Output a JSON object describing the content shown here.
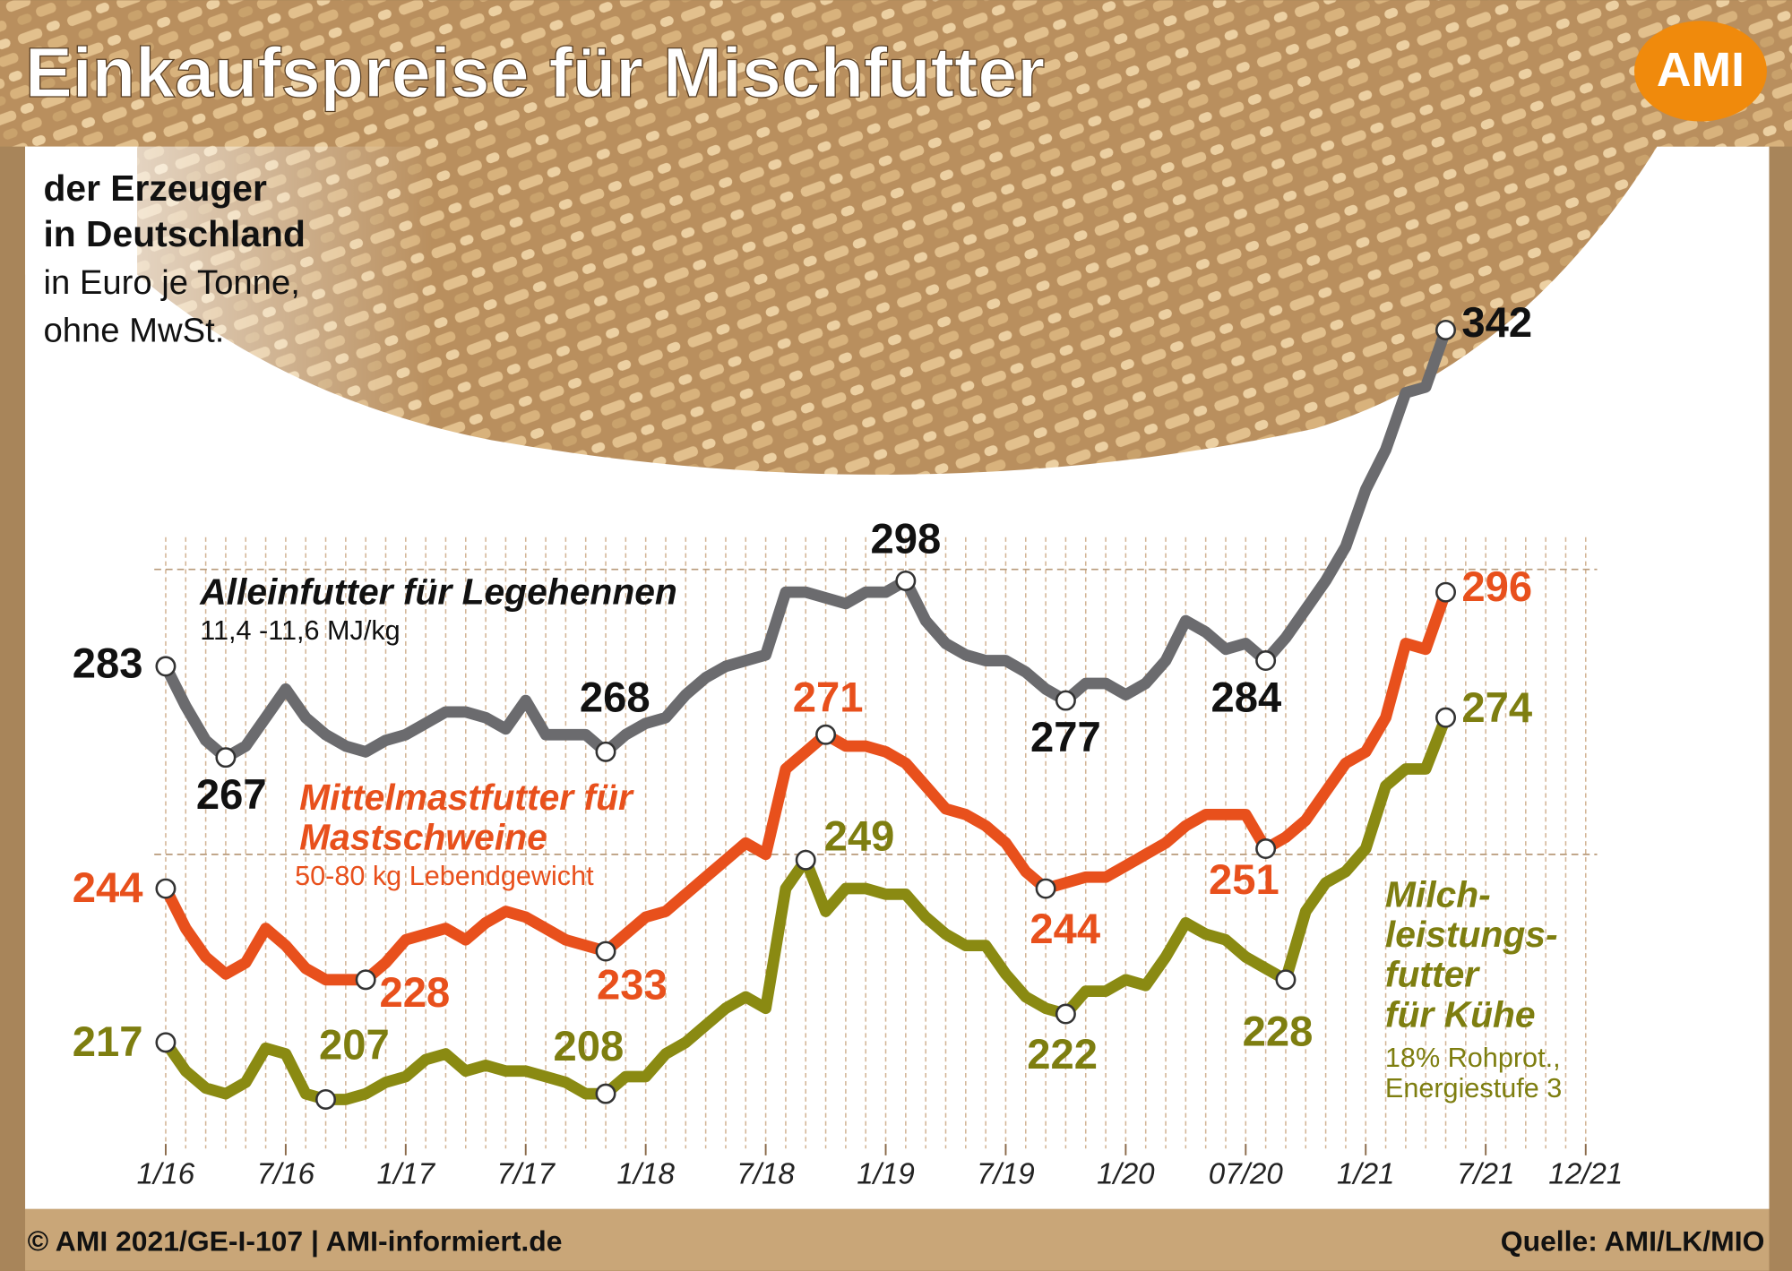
{
  "chart_data": {
    "type": "line",
    "title": "Einkaufspreise für Mischfutter",
    "logo": "AMI",
    "subtitle_bold": [
      "der Erzeuger",
      "in Deutschland"
    ],
    "subtitle": [
      "in Euro je Tonne,",
      "ohne MwSt."
    ],
    "footer_left": "© AMI 2021/GE-I-107 | AMI-informiert.de",
    "footer_right": "Quelle: AMI/LK/MIO",
    "x": [
      "2016-01",
      "2016-02",
      "2016-03",
      "2016-04",
      "2016-05",
      "2016-06",
      "2016-07",
      "2016-08",
      "2016-09",
      "2016-10",
      "2016-11",
      "2016-12",
      "2017-01",
      "2017-02",
      "2017-03",
      "2017-04",
      "2017-05",
      "2017-06",
      "2017-07",
      "2017-08",
      "2017-09",
      "2017-10",
      "2017-11",
      "2017-12",
      "2018-01",
      "2018-02",
      "2018-03",
      "2018-04",
      "2018-05",
      "2018-06",
      "2018-07",
      "2018-08",
      "2018-09",
      "2018-10",
      "2018-11",
      "2018-12",
      "2019-01",
      "2019-02",
      "2019-03",
      "2019-04",
      "2019-05",
      "2019-06",
      "2019-07",
      "2019-08",
      "2019-09",
      "2019-10",
      "2019-11",
      "2019-12",
      "2020-01",
      "2020-02",
      "2020-03",
      "2020-04",
      "2020-05",
      "2020-06",
      "2020-07",
      "2020-08",
      "2020-09",
      "2020-10",
      "2020-11",
      "2020-12",
      "2021-01",
      "2021-02",
      "2021-03",
      "2021-04",
      "2021-05"
    ],
    "xlim": [
      "2016-01",
      "2021-12"
    ],
    "xticks": [
      {
        "value": "2016-01",
        "label": "1/16"
      },
      {
        "value": "2016-07",
        "label": "7/16"
      },
      {
        "value": "2017-01",
        "label": "1/17"
      },
      {
        "value": "2017-07",
        "label": "7/17"
      },
      {
        "value": "2018-01",
        "label": "1/18"
      },
      {
        "value": "2018-07",
        "label": "7/18"
      },
      {
        "value": "2019-01",
        "label": "1/19"
      },
      {
        "value": "2019-07",
        "label": "7/19"
      },
      {
        "value": "2020-01",
        "label": "1/20"
      },
      {
        "value": "2020-07",
        "label": "07/20"
      },
      {
        "value": "2021-01",
        "label": "1/21"
      },
      {
        "value": "2021-07",
        "label": "7/21"
      },
      {
        "value": "2021-12",
        "label": "12/21"
      }
    ],
    "ylim": [
      198.4,
      373.8
    ],
    "ygrid": [
      250,
      300
    ],
    "series": [
      {
        "name": [
          "Alleinfutter für Legehennen"
        ],
        "note": [
          "11,4 -11,6 MJ/kg"
        ],
        "color": "#6b6b6e",
        "label_color": "#111111",
        "values": [
          283,
          276,
          270,
          267,
          269,
          274,
          279,
          274,
          271,
          269,
          268,
          270,
          271,
          273,
          275,
          275,
          274,
          272,
          277,
          271,
          271,
          271,
          268,
          271,
          273,
          274,
          278,
          281,
          283,
          284,
          285,
          296,
          296,
          295,
          294,
          296,
          296,
          298,
          291,
          287,
          285,
          284,
          284,
          282,
          279,
          277,
          280,
          280,
          278,
          280,
          284,
          291,
          289,
          286,
          287,
          284,
          288,
          293,
          298,
          304,
          314,
          321,
          331,
          332,
          342
        ],
        "marked": [
          "2016-01",
          "2016-04",
          "2017-11",
          "2019-02",
          "2019-10",
          "2020-08",
          "2021-05"
        ]
      },
      {
        "name": [
          "Mittelmastfutter für",
          "Mastschweine"
        ],
        "note": [
          "50-80 kg Lebendgewicht"
        ],
        "color": "#e8501c",
        "label_color": "#e8501c",
        "values": [
          244,
          237,
          232,
          229,
          231,
          237,
          234,
          230,
          228,
          228,
          228,
          231,
          235,
          236,
          237,
          235,
          238,
          240,
          239,
          237,
          235,
          234,
          233,
          236,
          239,
          240,
          243,
          246,
          249,
          252,
          250,
          265,
          268,
          271,
          269,
          269,
          268,
          266,
          262,
          258,
          257,
          255,
          252,
          247,
          244,
          245,
          246,
          246,
          248,
          250,
          252,
          255,
          257,
          257,
          257,
          251,
          253,
          256,
          261,
          266,
          268,
          274,
          287,
          286,
          296
        ],
        "marked": [
          "2016-01",
          "2016-11",
          "2017-11",
          "2018-10",
          "2019-09",
          "2020-08",
          "2021-05"
        ]
      },
      {
        "name": [
          "Milch-",
          "leistungs-",
          "futter",
          "für Kühe"
        ],
        "note": [
          "18% Rohprot.,",
          "Energiestufe 3"
        ],
        "color": "#8a8a12",
        "label_color": "#7e7e10",
        "values": [
          217,
          212,
          209,
          208,
          210,
          216,
          215,
          208,
          207,
          207,
          208,
          210,
          211,
          214,
          215,
          212,
          213,
          212,
          212,
          211,
          210,
          208,
          208,
          211,
          211,
          215,
          217,
          220,
          223,
          225,
          223,
          244,
          249,
          240,
          244,
          244,
          243,
          243,
          239,
          236,
          234,
          234,
          229,
          225,
          223,
          222,
          226,
          226,
          228,
          227,
          232,
          238,
          236,
          235,
          232,
          230,
          228,
          240,
          245,
          247,
          251,
          262,
          265,
          265,
          274
        ],
        "marked": [
          "2016-01",
          "2016-09",
          "2017-11",
          "2018-09",
          "2019-10",
          "2020-09",
          "2021-05"
        ]
      }
    ]
  }
}
